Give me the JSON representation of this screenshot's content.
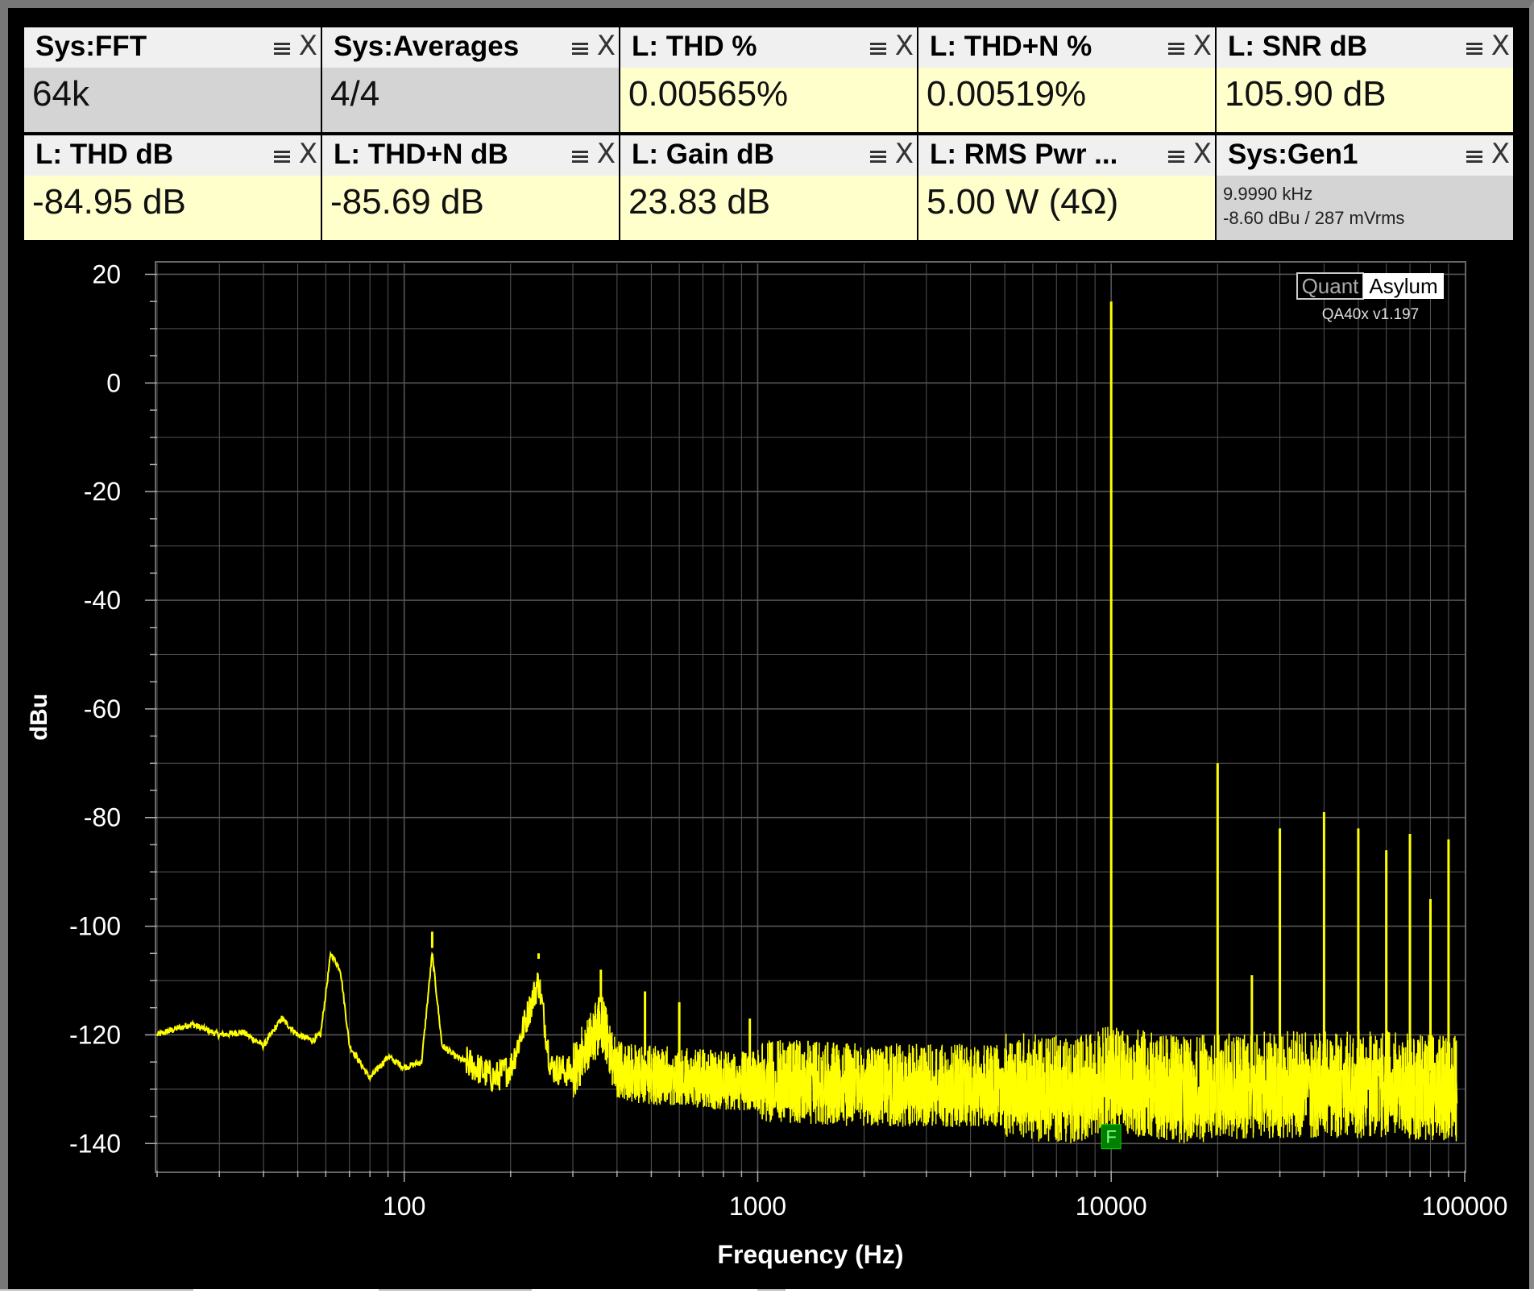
{
  "widgets": [
    {
      "title": "Sys:FFT",
      "value": "64k",
      "bg": "gray"
    },
    {
      "title": "Sys:Averages",
      "value": "4/4",
      "bg": "gray"
    },
    {
      "title": "L: THD %",
      "value": "0.00565%",
      "bg": "yellow"
    },
    {
      "title": "L: THD+N %",
      "value": "0.00519%",
      "bg": "yellow"
    },
    {
      "title": "L: SNR dB",
      "value": "105.90 dB",
      "bg": "yellow"
    },
    {
      "title": "L: THD dB",
      "value": "-84.95 dB",
      "bg": "yellow"
    },
    {
      "title": "L: THD+N dB",
      "value": "-85.69 dB",
      "bg": "yellow"
    },
    {
      "title": "L: Gain dB",
      "value": "23.83 dB",
      "bg": "yellow"
    },
    {
      "title": "L: RMS Pwr ...",
      "value": "5.00 W (4Ω)",
      "bg": "yellow"
    },
    {
      "title": "Sys:Gen1",
      "line1": "9.9990 kHz",
      "line2": "-8.60 dBu  / 287 mVrms",
      "bg": "gray"
    }
  ],
  "icons": {
    "menu": "hamburger-menu-icon",
    "close": "close-x-icon"
  },
  "logo": {
    "part1": "Quant",
    "part2": "Asylum",
    "version": "QA40x v1.197"
  },
  "marker": {
    "label": "F"
  },
  "colors": {
    "trace": "#ffff00",
    "grid": "#555555",
    "background": "#000000",
    "marker": "#008000"
  },
  "chart_data": {
    "type": "line",
    "xlabel": "Frequency (Hz)",
    "ylabel": "dBu",
    "xscale": "log",
    "xlim": [
      20,
      100000
    ],
    "ylim": [
      -145,
      22
    ],
    "xticks": [
      100,
      1000,
      10000,
      100000
    ],
    "yticks": [
      20,
      0,
      -20,
      -40,
      -60,
      -80,
      -100,
      -120,
      -140
    ],
    "grid": true,
    "noise_floor": [
      [
        20,
        -120
      ],
      [
        25,
        -118
      ],
      [
        30,
        -120
      ],
      [
        35,
        -119.5
      ],
      [
        40,
        -122
      ],
      [
        45,
        -117
      ],
      [
        50,
        -120
      ],
      [
        55,
        -121
      ],
      [
        58,
        -120
      ],
      [
        62,
        -105
      ],
      [
        66,
        -108
      ],
      [
        70,
        -122
      ],
      [
        80,
        -128
      ],
      [
        90,
        -124
      ],
      [
        100,
        -126
      ],
      [
        112,
        -125
      ],
      [
        120,
        -105
      ],
      [
        128,
        -122
      ],
      [
        140,
        -124
      ],
      [
        160,
        -126
      ],
      [
        180,
        -128
      ],
      [
        200,
        -126
      ],
      [
        240,
        -110
      ],
      [
        260,
        -126
      ],
      [
        300,
        -127
      ],
      [
        360,
        -118
      ],
      [
        400,
        -127
      ],
      [
        500,
        -128
      ],
      [
        600,
        -128
      ],
      [
        800,
        -129
      ],
      [
        1000,
        -129
      ],
      [
        2000,
        -130
      ],
      [
        4000,
        -130
      ],
      [
        8000,
        -131
      ],
      [
        10000,
        -129
      ],
      [
        16000,
        -131
      ],
      [
        30000,
        -130
      ],
      [
        60000,
        -130
      ],
      [
        95000,
        -131
      ]
    ],
    "spikes": [
      [
        120,
        -104
      ],
      [
        240,
        -105
      ],
      [
        360,
        -108
      ],
      [
        480,
        -112
      ],
      [
        600,
        -114
      ],
      [
        950,
        -117
      ],
      [
        9999,
        15
      ],
      [
        20000,
        -70
      ],
      [
        25000,
        -109
      ],
      [
        30000,
        -82
      ],
      [
        40000,
        -79
      ],
      [
        50000,
        -82
      ],
      [
        60000,
        -86
      ],
      [
        70000,
        -83
      ],
      [
        80000,
        -95
      ],
      [
        90000,
        -84
      ]
    ]
  }
}
